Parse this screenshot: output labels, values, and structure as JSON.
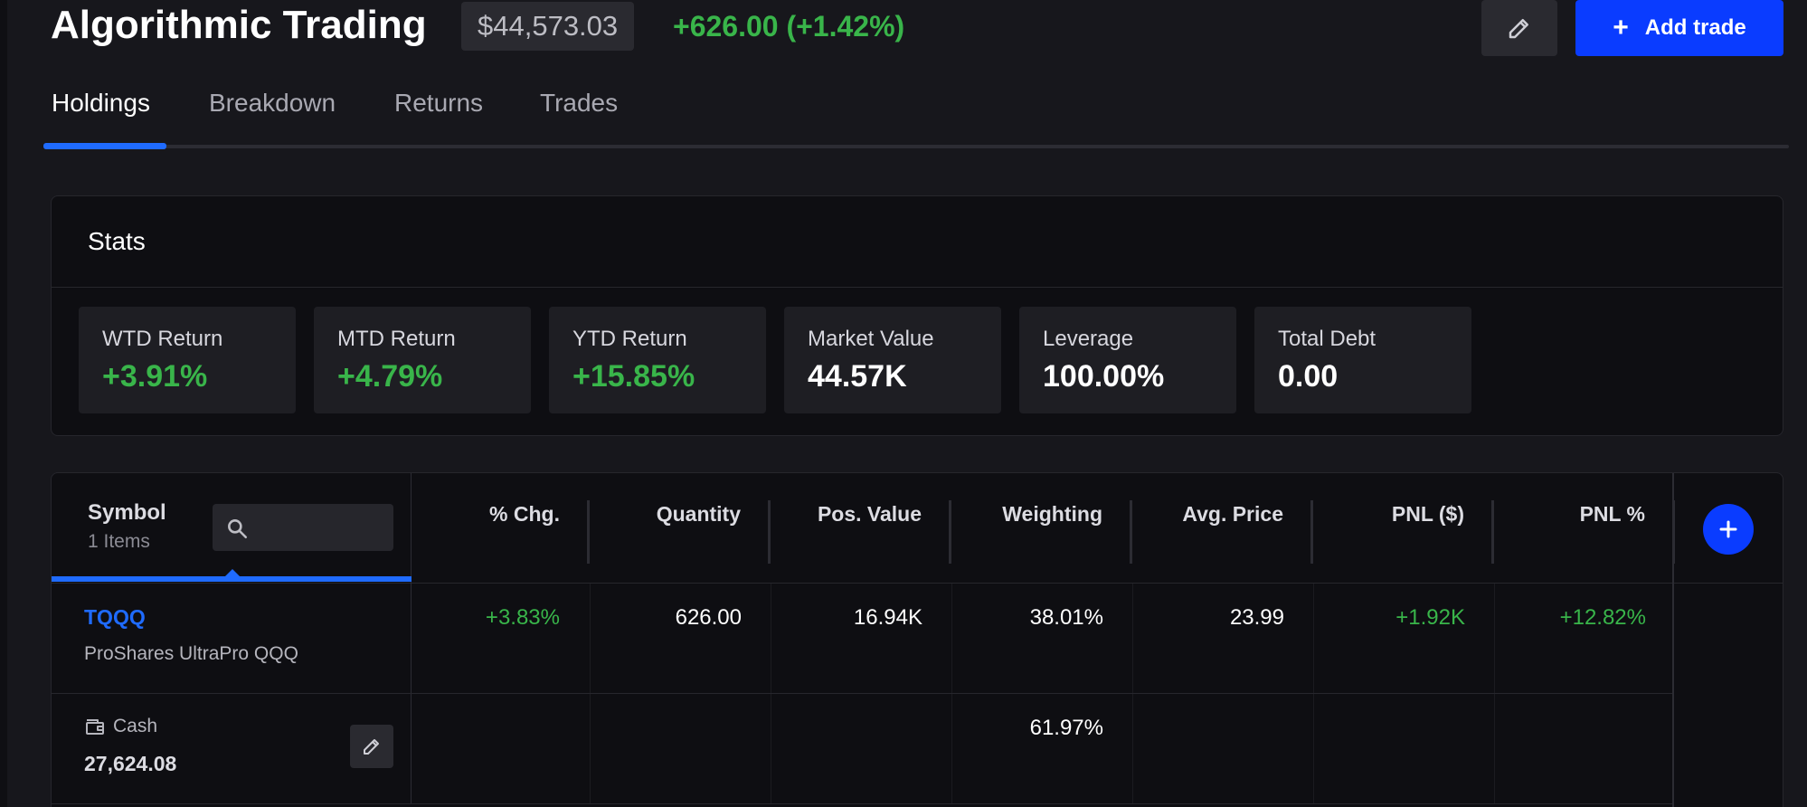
{
  "header": {
    "title": "Algorithmic Trading",
    "portfolio_value": "$44,573.03",
    "day_change": "+626.00 (+1.42%)",
    "edit_icon": "pencil-icon",
    "add_trade_label": "Add trade"
  },
  "tabs": [
    {
      "label": "Holdings",
      "active": true
    },
    {
      "label": "Breakdown",
      "active": false
    },
    {
      "label": "Returns",
      "active": false
    },
    {
      "label": "Trades",
      "active": false
    }
  ],
  "stats": {
    "title": "Stats",
    "cards": [
      {
        "label": "WTD Return",
        "value": "+3.91%",
        "positive": true
      },
      {
        "label": "MTD Return",
        "value": "+4.79%",
        "positive": true
      },
      {
        "label": "YTD Return",
        "value": "+15.85%",
        "positive": true
      },
      {
        "label": "Market Value",
        "value": "44.57K",
        "positive": false
      },
      {
        "label": "Leverage",
        "value": "100.00%",
        "positive": false
      },
      {
        "label": "Total Debt",
        "value": "0.00",
        "positive": false
      }
    ]
  },
  "table": {
    "symbol_header": "Symbol",
    "item_count": "1 Items",
    "search_placeholder": "",
    "columns": [
      "% Chg.",
      "Quantity",
      "Pos. Value",
      "Weighting",
      "Avg. Price",
      "PNL ($)",
      "PNL %"
    ],
    "rows": [
      {
        "ticker": "TQQQ",
        "name": "ProShares UltraPro QQQ",
        "pct_chg": "+3.83%",
        "quantity": "626.00",
        "pos_value": "16.94K",
        "weighting": "38.01%",
        "avg_price": "23.99",
        "pnl": "+1.92K",
        "pnl_pct": "+12.82%"
      }
    ],
    "cash": {
      "label": "Cash",
      "value": "27,624.08",
      "weighting": "61.97%"
    }
  },
  "colors": {
    "accent": "#0a3cff",
    "positive": "#39b54a",
    "background": "#17171c"
  }
}
